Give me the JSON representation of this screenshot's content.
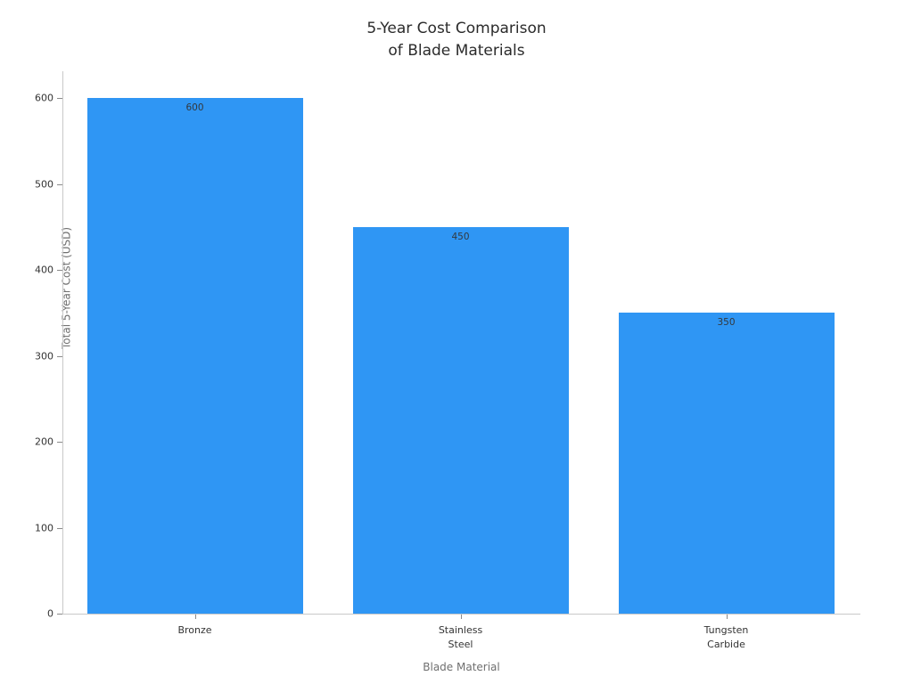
{
  "chart_data": {
    "type": "bar",
    "title": "5-Year Cost Comparison\nof Blade Materials",
    "categories": [
      "Bronze",
      "Stainless\nSteel",
      "Tungsten\nCarbide"
    ],
    "values": [
      600,
      450,
      350
    ],
    "bar_labels": [
      "600",
      "450",
      "350"
    ],
    "xlabel": "Blade Material",
    "ylabel": "Total 5-Year Cost (USD)",
    "yticks": [
      0,
      100,
      200,
      300,
      400,
      500,
      600
    ],
    "ylim": [
      0,
      620
    ],
    "bar_color": "#2f96f4",
    "grid": false,
    "legend_position": "none"
  }
}
